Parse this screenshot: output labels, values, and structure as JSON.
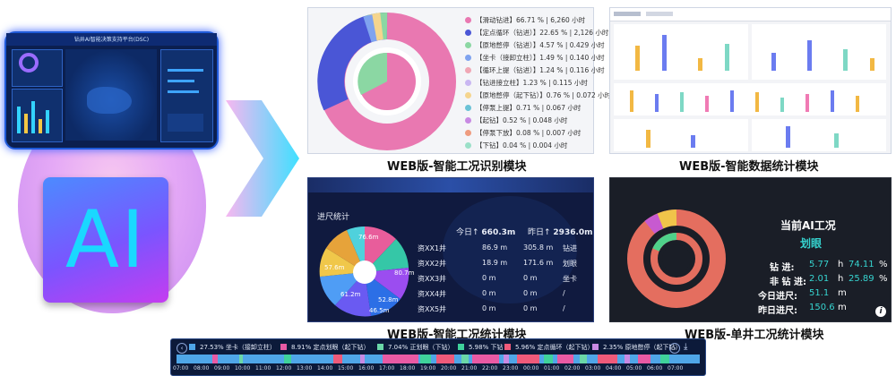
{
  "hero": {
    "dash_title": "钻井AI智能决策支持平台(DSC)",
    "ai_label": "AI"
  },
  "panel1": {
    "caption": "WEB版-智能工况识别模块",
    "colors": [
      "#e978b1",
      "#4a56d6",
      "#8bd7a3",
      "#7fa3ef",
      "#f0a7b5",
      "#c9b7f2",
      "#f5d58e",
      "#6bc2d6",
      "#c88ae3",
      "#ef9c7f",
      "#9be0c8"
    ],
    "legend": [
      {
        "text": "【滑动钻进】66.71 % | 6,260 小时",
        "color": "#e978b1"
      },
      {
        "text": "【定点循环（钻进）】22.65 % | 2,126 小时",
        "color": "#4a56d6"
      },
      {
        "text": "【原地憋停（钻进）】4.57 % | 0.429 小时",
        "color": "#8bd7a3"
      },
      {
        "text": "【坐卡（接卸立柱）】1.49 % | 0.140 小时",
        "color": "#7fa3ef"
      },
      {
        "text": "【循环上提（钻进）】1.24 % | 0.116 小时",
        "color": "#f0a7b5"
      },
      {
        "text": "【钻进接立柱】1.23 % | 0.115 小时",
        "color": "#c9b7f2"
      },
      {
        "text": "【原地憋停（起下钻）】0.76 % | 0.072 小时",
        "color": "#f5d58e"
      },
      {
        "text": "【停泵上提】0.71 % | 0.067 小时",
        "color": "#6bc2d6"
      },
      {
        "text": "【起钻】0.52 % | 0.048 小时",
        "color": "#c88ae3"
      },
      {
        "text": "【停泵下放】0.08 % | 0.007 小时",
        "color": "#ef9c7f"
      },
      {
        "text": "【下钻】0.04 % | 0.004 小时",
        "color": "#9be0c8"
      }
    ]
  },
  "panel2": {
    "caption": "WEB版-智能数据统计模块"
  },
  "panel3": {
    "caption": "WEB版-智能工况统计模块",
    "title": "进尺统计",
    "today_label": "今日↑",
    "today_value": "660.3m",
    "yesterday_label": "昨日↑",
    "yesterday_value": "2936.0m",
    "rows": [
      {
        "well": "资XX1井",
        "today": "86.9 m",
        "yesterday": "305.8 m",
        "status": "钻进"
      },
      {
        "well": "资XX2井",
        "today": "18.9 m",
        "yesterday": "171.6 m",
        "status": "划眼"
      },
      {
        "well": "资XX3井",
        "today": "0 m",
        "yesterday": "0 m",
        "status": "坐卡"
      },
      {
        "well": "资XX4井",
        "today": "0 m",
        "yesterday": "0 m",
        "status": "/"
      },
      {
        "well": "资XX5井",
        "today": "0 m",
        "yesterday": "0 m",
        "status": "/"
      }
    ],
    "rose_labels": [
      "80.7m",
      "76.6m",
      "61.2m",
      "57.6m",
      "52.8m",
      "46.5m"
    ]
  },
  "panel4": {
    "caption": "WEB版-单井工况统计模块",
    "title": "当前AI工况",
    "state": "划眼",
    "drill_label": "钻  进:",
    "drill_hours": "5.77",
    "drill_unit": "h",
    "drill_pct": "74.11",
    "pct_unit": "%",
    "nondrill_label": "非 钻 进:",
    "nondrill_hours": "2.01",
    "nondrill_pct": "25.89",
    "today_label": "今日进尺:",
    "today_value": "51.1",
    "yesterday_label": "昨日进尺:",
    "yesterday_value": "150.6",
    "length_unit": "m",
    "info_icon": "i"
  },
  "timeline": {
    "legend": [
      {
        "text": "27.53% 坐卡（接卸立柱）",
        "color": "#4fa6e8"
      },
      {
        "text": "8.91% 定点划眼（起下钻）",
        "color": "#e95aa4"
      },
      {
        "text": "7.04% 正划眼（下钻）",
        "color": "#6ad7a8"
      },
      {
        "text": "5.98% 下钻",
        "color": "#3fd29b"
      },
      {
        "text": "5.96% 定点循环（起下钻）",
        "color": "#ef5a7a"
      },
      {
        "text": "2.35% 原地憋停（起下钻）",
        "color": "#c88ae3"
      }
    ],
    "ticks": [
      "07:00",
      "08:00",
      "09:00",
      "10:00",
      "11:00",
      "12:00",
      "13:00",
      "14:00",
      "15:00",
      "16:00",
      "17:00",
      "18:00",
      "19:00",
      "20:00",
      "21:00",
      "22:00",
      "23:00",
      "00:00",
      "01:00",
      "02:00",
      "03:00",
      "04:00",
      "05:00",
      "06:00",
      "07:00"
    ]
  }
}
